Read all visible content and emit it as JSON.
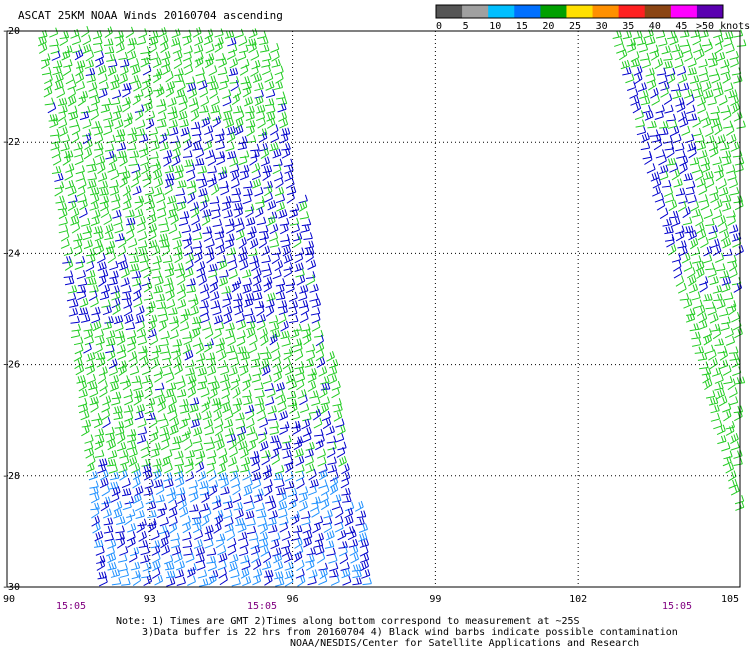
{
  "title": "ASCAT 25KM NOAA Winds 20160704 ascending",
  "legend": {
    "labels": [
      "0",
      "5",
      "10",
      "15",
      "20",
      "25",
      "30",
      "35",
      "40",
      "45",
      ">50 knots"
    ],
    "colors": [
      "#555555",
      "#a0a0a0",
      "#00bfff",
      "#0070ff",
      "#00a000",
      "#ffe000",
      "#ff9000",
      "#ff2020",
      "#8b4513",
      "#ff00ff",
      "#5a00b0"
    ]
  },
  "map": {
    "lon_labels": [
      "90",
      "93",
      "96",
      "99",
      "102",
      "105"
    ],
    "lat_labels": [
      "-20",
      "-22",
      "-24",
      "-26",
      "-28",
      "-30"
    ],
    "time_labels": [
      "15:05",
      "15:05",
      "15:05"
    ],
    "colors": {
      "green": "#22cc22",
      "blue": "#0000cc",
      "light_blue": "#1e90ff",
      "time_label": "#800080",
      "grid": "#000000"
    }
  },
  "notes": {
    "line1": "Note: 1) Times are GMT 2)Times along bottom correspond to measurement at ~25S",
    "line2": "3)Data buffer is 22 hrs from 20160704 4) Black wind barbs indicate possible contamination",
    "line3": "NOAA/NESDIS/Center for Satellite Applications and Research"
  }
}
